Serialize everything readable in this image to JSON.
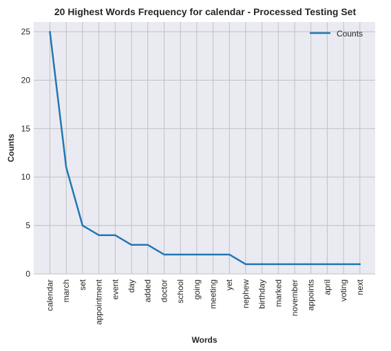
{
  "chart_data": {
    "type": "line",
    "title": "20 Highest Words Frequency for calendar - Processed Testing Set",
    "xlabel": "Words",
    "ylabel": "Counts",
    "categories": [
      "calendar",
      "march",
      "set",
      "appointment",
      "event",
      "day",
      "added",
      "doctor",
      "school",
      "going",
      "meeting",
      "yet",
      "nephew",
      "birthday",
      "marked",
      "november",
      "appoints",
      "april",
      "voting",
      "next"
    ],
    "series": [
      {
        "name": "Counts",
        "values": [
          25,
          11,
          5,
          4,
          4,
          3,
          3,
          2,
          2,
          2,
          2,
          2,
          1,
          1,
          1,
          1,
          1,
          1,
          1,
          1
        ]
      }
    ],
    "ylim": [
      0,
      26
    ],
    "yticks": [
      0,
      5,
      10,
      15,
      20,
      25
    ],
    "grid": true,
    "legend": "top-right",
    "colors": {
      "line": "#1f77b4",
      "background": "#eaeaf2",
      "grid": "#c0c0c0"
    }
  }
}
